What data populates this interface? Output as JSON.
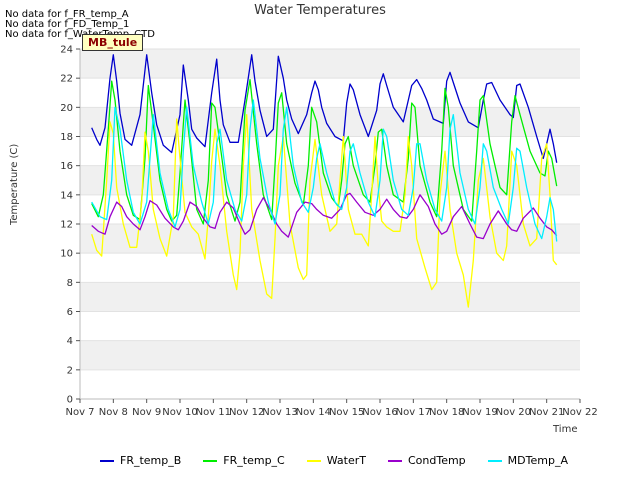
{
  "no_data_notes": [
    "No data for f_FR_temp_A",
    "No data for f_FD_Temp_1",
    "No data for f_WaterTemp_CTD"
  ],
  "chart_data": {
    "type": "line",
    "title": "Water Temperatures",
    "site_tag": "MB_tule",
    "xlabel": "Time",
    "ylabel": "Temperature (C)",
    "ylim": [
      0,
      24
    ],
    "yticks": [
      0,
      2,
      4,
      6,
      8,
      10,
      12,
      14,
      16,
      18,
      20,
      22,
      24
    ],
    "xlim": [
      7,
      22
    ],
    "xtick_values": [
      7,
      8,
      9,
      10,
      11,
      12,
      13,
      14,
      15,
      16,
      17,
      18,
      19,
      20,
      21,
      22
    ],
    "xtick_labels": [
      "Nov 7",
      "Nov 8",
      "Nov 9",
      "Nov 10",
      "Nov 11",
      "Nov 12",
      "Nov 13",
      "Nov 14",
      "Nov 15",
      "Nov 16",
      "Nov 17",
      "Nov 18",
      "Nov 19",
      "Nov 20",
      "Nov 21",
      "Nov 22"
    ],
    "background_bands": "alternating light grey every 2 °C",
    "legend_position": "bottom",
    "series": [
      {
        "name": "FR_temp_B",
        "color": "#0000cc",
        "x": [
          7.35,
          7.5,
          7.6,
          7.75,
          7.9,
          8.0,
          8.1,
          8.2,
          8.35,
          8.55,
          8.8,
          9.0,
          9.15,
          9.3,
          9.5,
          9.75,
          10.0,
          10.1,
          10.25,
          10.35,
          10.5,
          10.75,
          10.95,
          11.1,
          11.2,
          11.3,
          11.5,
          11.75,
          11.95,
          12.15,
          12.25,
          12.4,
          12.6,
          12.8,
          12.95,
          13.1,
          13.2,
          13.35,
          13.55,
          13.8,
          13.95,
          14.05,
          14.15,
          14.25,
          14.4,
          14.65,
          14.9,
          15.0,
          15.1,
          15.2,
          15.4,
          15.65,
          15.9,
          16.0,
          16.1,
          16.2,
          16.4,
          16.7,
          16.95,
          17.1,
          17.25,
          17.4,
          17.6,
          17.9,
          18.0,
          18.1,
          18.2,
          18.4,
          18.65,
          18.95,
          19.1,
          19.2,
          19.35,
          19.6,
          19.9,
          20.0,
          20.1,
          20.2,
          20.45,
          20.7,
          20.9,
          21.0,
          21.1,
          21.2,
          21.3
        ],
        "values": [
          18.6,
          17.8,
          17.4,
          18.6,
          22.0,
          23.6,
          21.8,
          19.6,
          17.8,
          17.4,
          19.5,
          23.6,
          21.0,
          18.8,
          17.4,
          16.9,
          19.5,
          22.9,
          20.5,
          18.5,
          17.9,
          17.3,
          21.0,
          23.3,
          20.5,
          18.8,
          17.6,
          17.6,
          20.5,
          23.6,
          21.8,
          19.8,
          18.0,
          18.5,
          23.5,
          22.0,
          20.5,
          19.2,
          18.2,
          19.5,
          21.0,
          21.8,
          21.2,
          20.0,
          18.9,
          18.0,
          17.7,
          20.3,
          21.6,
          21.2,
          19.5,
          18.0,
          19.8,
          21.6,
          22.3,
          21.5,
          20.0,
          19.0,
          21.5,
          21.9,
          21.3,
          20.5,
          19.2,
          18.9,
          21.8,
          22.4,
          21.7,
          20.3,
          19.0,
          18.6,
          20.5,
          21.6,
          21.7,
          20.5,
          19.5,
          19.3,
          21.5,
          21.6,
          20.0,
          18.0,
          16.5,
          17.5,
          18.5,
          17.5,
          16.2
        ]
      },
      {
        "name": "FR_temp_C",
        "color": "#00ee00",
        "x": [
          7.35,
          7.55,
          7.7,
          7.85,
          7.95,
          8.05,
          8.2,
          8.4,
          8.6,
          8.8,
          8.95,
          9.05,
          9.2,
          9.4,
          9.6,
          9.75,
          9.9,
          10.0,
          10.15,
          10.3,
          10.5,
          10.7,
          10.85,
          10.95,
          11.05,
          11.2,
          11.4,
          11.65,
          11.8,
          11.95,
          12.1,
          12.3,
          12.5,
          12.75,
          12.85,
          12.95,
          13.05,
          13.2,
          13.45,
          13.7,
          13.85,
          13.95,
          14.1,
          14.3,
          14.55,
          14.75,
          14.85,
          14.95,
          15.05,
          15.2,
          15.5,
          15.7,
          15.85,
          15.95,
          16.05,
          16.2,
          16.4,
          16.7,
          16.85,
          16.95,
          17.05,
          17.2,
          17.5,
          17.7,
          17.85,
          17.95,
          18.05,
          18.2,
          18.5,
          18.75,
          18.9,
          19.0,
          19.1,
          19.3,
          19.6,
          19.8,
          19.95,
          20.05,
          20.2,
          20.5,
          20.8,
          20.95,
          21.05,
          21.15,
          21.3
        ],
        "values": [
          13.4,
          12.5,
          14.0,
          18.5,
          21.8,
          20.5,
          17.0,
          14.0,
          12.6,
          12.3,
          16.5,
          21.5,
          18.8,
          15.0,
          13.0,
          12.2,
          12.6,
          15.5,
          20.5,
          17.5,
          13.0,
          12.0,
          15.0,
          20.3,
          20.0,
          17.5,
          14.0,
          12.2,
          13.5,
          19.8,
          21.9,
          17.5,
          14.0,
          12.3,
          16.0,
          20.3,
          21.0,
          17.5,
          14.8,
          13.3,
          16.0,
          20.0,
          19.0,
          15.5,
          13.8,
          13.2,
          15.0,
          17.5,
          18.0,
          16.0,
          14.0,
          13.5,
          16.0,
          18.3,
          18.5,
          16.0,
          14.0,
          13.5,
          16.5,
          20.3,
          20.0,
          16.0,
          13.5,
          12.5,
          17.0,
          21.3,
          20.0,
          16.0,
          13.0,
          12.2,
          17.0,
          20.5,
          20.8,
          17.5,
          14.5,
          14.0,
          19.0,
          20.8,
          19.5,
          17.0,
          15.5,
          15.3,
          17.0,
          16.5,
          14.6
        ]
      },
      {
        "name": "WaterT",
        "color": "#ffff00",
        "x": [
          7.35,
          7.5,
          7.65,
          7.8,
          7.9,
          8.0,
          8.1,
          8.3,
          8.5,
          8.7,
          8.85,
          8.95,
          9.05,
          9.2,
          9.4,
          9.6,
          9.8,
          9.9,
          10.0,
          10.15,
          10.35,
          10.55,
          10.75,
          10.85,
          10.95,
          11.05,
          11.2,
          11.4,
          11.6,
          11.7,
          11.8,
          11.9,
          12.0,
          12.15,
          12.4,
          12.6,
          12.75,
          12.85,
          12.95,
          13.1,
          13.3,
          13.55,
          13.7,
          13.8,
          13.9,
          14.05,
          14.25,
          14.5,
          14.7,
          14.8,
          14.9,
          15.05,
          15.25,
          15.45,
          15.65,
          15.75,
          15.85,
          15.95,
          16.05,
          16.2,
          16.4,
          16.6,
          16.75,
          16.85,
          16.95,
          17.1,
          17.35,
          17.55,
          17.7,
          17.8,
          17.95,
          18.1,
          18.3,
          18.5,
          18.65,
          18.8,
          18.95,
          19.1,
          19.3,
          19.5,
          19.7,
          19.8,
          19.95,
          20.1,
          20.3,
          20.5,
          20.7,
          20.85,
          21.0,
          21.1,
          21.2,
          21.3
        ],
        "values": [
          11.3,
          10.2,
          9.8,
          15.0,
          19.0,
          18.2,
          14.5,
          12.0,
          10.4,
          10.4,
          13.5,
          18.3,
          17.0,
          13.0,
          11.0,
          9.8,
          12.5,
          19.2,
          16.5,
          12.8,
          11.8,
          11.3,
          9.6,
          12.5,
          16.3,
          18.5,
          16.0,
          11.5,
          8.5,
          7.5,
          10.0,
          16.0,
          19.5,
          13.0,
          9.5,
          7.2,
          6.9,
          11.0,
          16.0,
          18.0,
          12.0,
          9.0,
          8.2,
          8.5,
          15.0,
          17.8,
          14.0,
          11.5,
          12.0,
          15.0,
          18.0,
          13.0,
          11.3,
          11.3,
          10.5,
          14.0,
          18.0,
          14.5,
          12.2,
          11.8,
          11.5,
          11.5,
          14.0,
          18.0,
          16.0,
          11.0,
          9.0,
          7.5,
          8.0,
          14.0,
          17.0,
          13.0,
          10.0,
          8.5,
          6.3,
          9.5,
          15.0,
          16.5,
          12.5,
          10.0,
          9.5,
          10.5,
          17.0,
          16.0,
          12.0,
          10.5,
          11.0,
          16.5,
          17.5,
          14.0,
          9.5,
          9.2
        ]
      },
      {
        "name": "CondTemp",
        "color": "#9900cc",
        "x": [
          7.35,
          7.55,
          7.75,
          7.9,
          8.1,
          8.25,
          8.4,
          8.6,
          8.8,
          8.95,
          9.1,
          9.3,
          9.55,
          9.8,
          9.95,
          10.1,
          10.3,
          10.5,
          10.7,
          10.9,
          11.05,
          11.2,
          11.4,
          11.6,
          11.8,
          11.95,
          12.1,
          12.3,
          12.5,
          12.7,
          12.9,
          13.05,
          13.25,
          13.5,
          13.75,
          13.95,
          14.1,
          14.3,
          14.55,
          14.8,
          15.0,
          15.1,
          15.3,
          15.55,
          15.8,
          16.0,
          16.2,
          16.4,
          16.6,
          16.8,
          17.0,
          17.2,
          17.45,
          17.65,
          17.85,
          18.0,
          18.2,
          18.45,
          18.7,
          18.9,
          19.1,
          19.3,
          19.55,
          19.8,
          19.95,
          20.1,
          20.3,
          20.6,
          20.8,
          21.0,
          21.15,
          21.3
        ],
        "values": [
          11.9,
          11.5,
          11.3,
          12.5,
          13.5,
          13.2,
          12.5,
          12.0,
          11.6,
          12.5,
          13.6,
          13.3,
          12.4,
          11.8,
          11.6,
          12.2,
          13.5,
          13.2,
          12.4,
          11.8,
          11.7,
          12.8,
          13.5,
          13.1,
          12.0,
          11.3,
          11.6,
          13.0,
          13.8,
          13.0,
          12.0,
          11.5,
          11.1,
          12.8,
          13.5,
          13.4,
          13.0,
          12.6,
          12.4,
          13.0,
          14.0,
          14.1,
          13.5,
          12.8,
          12.6,
          13.0,
          13.7,
          13.0,
          12.5,
          12.4,
          13.0,
          14.0,
          13.2,
          12.0,
          11.3,
          11.5,
          12.5,
          13.2,
          12.0,
          11.1,
          11.0,
          12.0,
          12.9,
          12.0,
          11.6,
          11.5,
          12.4,
          13.1,
          12.4,
          11.8,
          11.6,
          11.2
        ]
      },
      {
        "name": "MDTemp_A",
        "color": "#00eeff",
        "x": [
          7.35,
          7.6,
          7.8,
          7.95,
          8.05,
          8.2,
          8.4,
          8.6,
          8.8,
          9.0,
          9.1,
          9.2,
          9.4,
          9.65,
          9.85,
          10.0,
          10.1,
          10.2,
          10.4,
          10.65,
          10.85,
          11.0,
          11.1,
          11.2,
          11.4,
          11.65,
          11.85,
          12.0,
          12.1,
          12.2,
          12.4,
          12.65,
          12.85,
          13.0,
          13.1,
          13.2,
          13.4,
          13.65,
          13.85,
          14.0,
          14.1,
          14.2,
          14.4,
          14.65,
          14.85,
          15.0,
          15.1,
          15.2,
          15.4,
          15.65,
          15.85,
          16.0,
          16.1,
          16.2,
          16.4,
          16.65,
          16.85,
          17.0,
          17.1,
          17.2,
          17.4,
          17.65,
          17.85,
          18.0,
          18.1,
          18.2,
          18.4,
          18.65,
          18.85,
          19.0,
          19.1,
          19.2,
          19.4,
          19.65,
          19.85,
          20.0,
          20.1,
          20.2,
          20.4,
          20.65,
          20.85,
          21.0,
          21.1,
          21.2,
          21.3
        ],
        "values": [
          13.5,
          12.5,
          12.3,
          15.0,
          20.0,
          18.5,
          15.0,
          12.8,
          12.0,
          13.5,
          16.5,
          19.5,
          15.5,
          13.0,
          11.8,
          13.0,
          17.0,
          20.0,
          16.0,
          13.5,
          12.0,
          13.5,
          17.5,
          18.5,
          15.0,
          13.0,
          12.2,
          14.0,
          18.5,
          20.5,
          16.5,
          13.5,
          12.0,
          14.0,
          18.5,
          20.0,
          16.0,
          13.5,
          12.8,
          14.5,
          16.5,
          17.5,
          15.5,
          13.5,
          13.0,
          14.5,
          17.0,
          17.5,
          15.5,
          13.5,
          12.5,
          15.0,
          18.5,
          18.0,
          15.0,
          13.0,
          12.6,
          14.5,
          17.5,
          17.5,
          15.0,
          13.0,
          12.2,
          14.5,
          18.5,
          19.5,
          15.5,
          13.0,
          12.0,
          14.5,
          17.5,
          17.0,
          14.5,
          13.0,
          12.0,
          14.5,
          17.2,
          17.0,
          14.5,
          12.0,
          11.0,
          12.5,
          13.8,
          13.0,
          10.8
        ]
      }
    ]
  }
}
